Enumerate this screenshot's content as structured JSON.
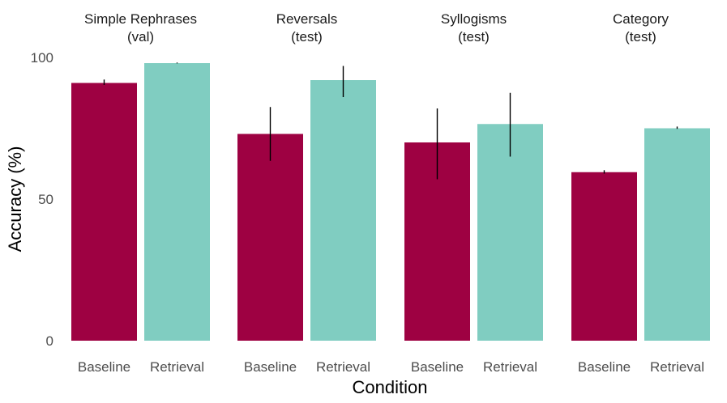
{
  "chart_data": {
    "type": "bar",
    "title": "",
    "xlabel": "Condition",
    "ylabel": "Accuracy (%)",
    "ylim": [
      0,
      100
    ],
    "yticks": [
      "0",
      "50",
      "100"
    ],
    "grid": false,
    "legend": "none",
    "colors": {
      "Baseline": "#9e0142",
      "Retrieval": "#80cdc1",
      "errorbar": "#000000"
    },
    "categories": [
      "Baseline",
      "Retrieval"
    ],
    "facets": [
      {
        "title_line1": "Simple Rephrases",
        "title_line2": "(val)",
        "bars": [
          {
            "label": "Baseline",
            "value": 91,
            "err_low": 90.3,
            "err_high": 92.2
          },
          {
            "label": "Retrieval",
            "value": 98,
            "err_low": 97.9,
            "err_high": 98.2
          }
        ]
      },
      {
        "title_line1": "Reversals",
        "title_line2": "(test)",
        "bars": [
          {
            "label": "Baseline",
            "value": 73,
            "err_low": 63.5,
            "err_high": 82.5
          },
          {
            "label": "Retrieval",
            "value": 92,
            "err_low": 86,
            "err_high": 97
          }
        ]
      },
      {
        "title_line1": "Syllogisms",
        "title_line2": "(test)",
        "bars": [
          {
            "label": "Baseline",
            "value": 70,
            "err_low": 57,
            "err_high": 82
          },
          {
            "label": "Retrieval",
            "value": 76.5,
            "err_low": 65,
            "err_high": 87.5
          }
        ]
      },
      {
        "title_line1": "Category",
        "title_line2": "(test)",
        "bars": [
          {
            "label": "Baseline",
            "value": 59.5,
            "err_low": 59,
            "err_high": 60.2
          },
          {
            "label": "Retrieval",
            "value": 75,
            "err_low": 74.8,
            "err_high": 75.6
          }
        ]
      }
    ]
  }
}
